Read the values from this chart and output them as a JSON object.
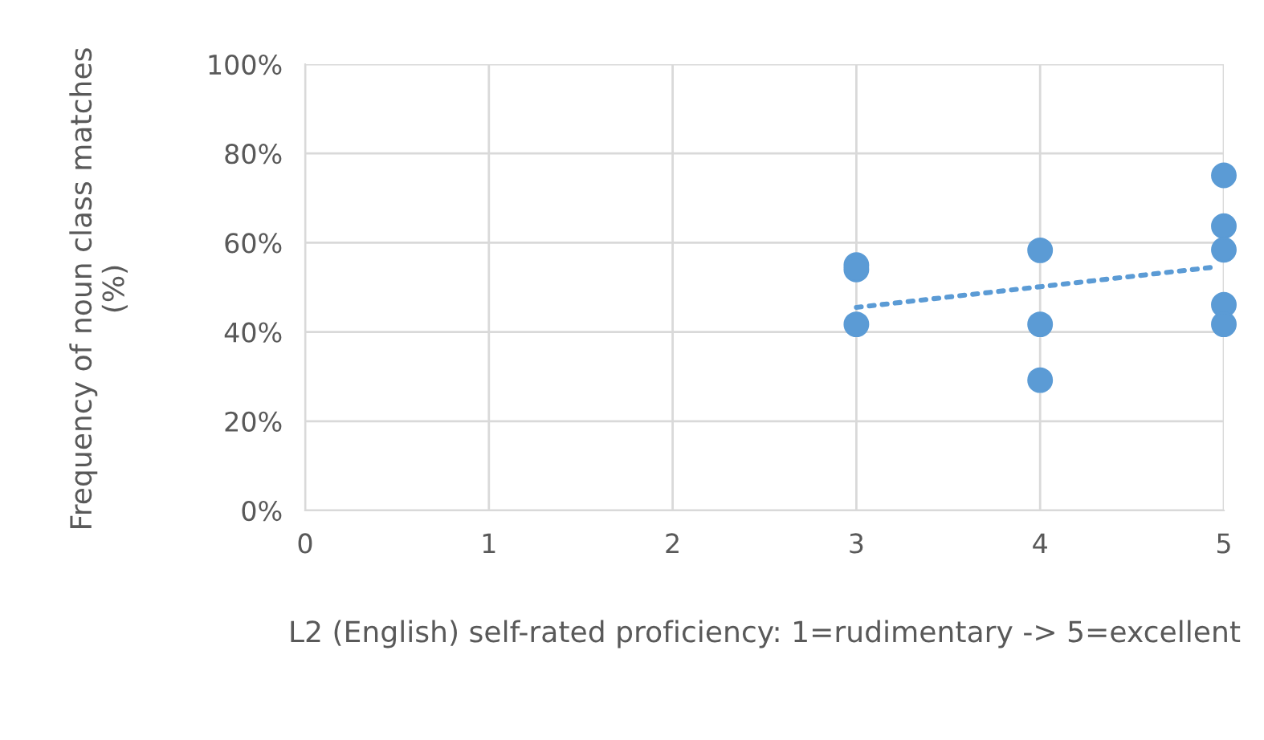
{
  "chart_data": {
    "type": "scatter",
    "xlabel": "L2 (English) self-rated proficiency: 1=rudimentary -> 5=excellent",
    "ylabel": "Frequency of noun class matches (%)",
    "xlim": [
      0,
      5
    ],
    "xticks": [
      0,
      1,
      2,
      3,
      4,
      5
    ],
    "ylim": [
      0,
      100
    ],
    "yticks": [
      {
        "value": 0,
        "label": "0%"
      },
      {
        "value": 20,
        "label": "20%"
      },
      {
        "value": 40,
        "label": "40%"
      },
      {
        "value": 60,
        "label": "60%"
      },
      {
        "value": 80,
        "label": "80%"
      },
      {
        "value": 100,
        "label": "100%"
      }
    ],
    "grid": true,
    "legend": false,
    "marker": "circle",
    "series": [
      {
        "color": "#5b9bd5",
        "x": [
          3,
          3,
          3,
          4,
          4,
          4,
          5,
          5,
          5,
          5,
          5
        ],
        "values": [
          55,
          54,
          41.7,
          58.3,
          41.7,
          29.2,
          75.1,
          63.7,
          58.4,
          46.1,
          41.7
        ]
      },
      {
        "type": "line",
        "color": "#5b9bd5",
        "line_style": "dotted",
        "marker": "none",
        "x": [
          3,
          4.94
        ],
        "values": [
          45.5,
          54.5
        ]
      }
    ]
  }
}
